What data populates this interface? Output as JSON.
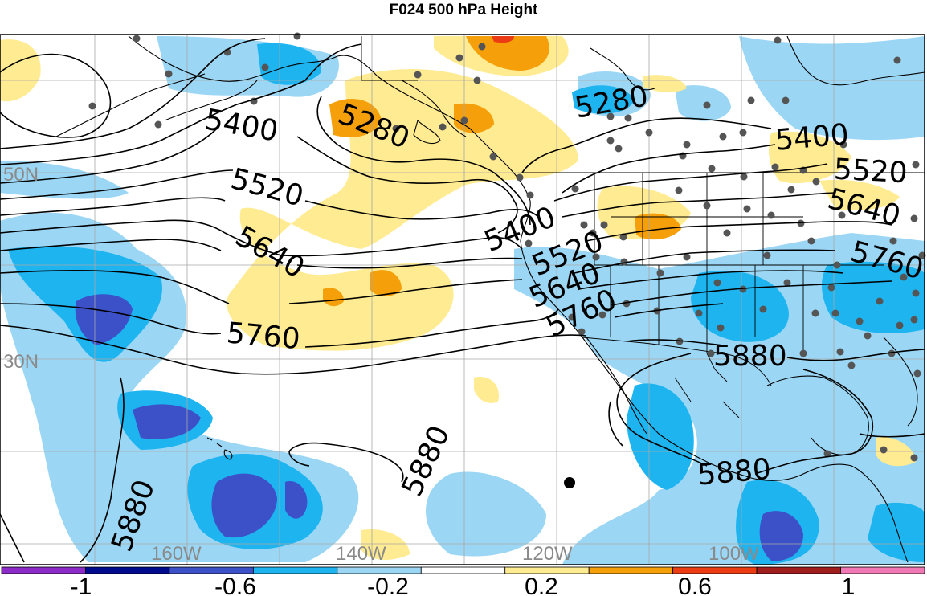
{
  "title": "F024 500 hPa Height",
  "colors": {
    "background": "#ffffff",
    "contour": "#000000",
    "gridline": "#a8a8a8",
    "station": "#555555"
  },
  "map": {
    "projection": "cylindrical",
    "contour_field": "500 hPa geopotential height (m)",
    "contour_levels": [
      5280,
      5400,
      5520,
      5640,
      5760,
      5880
    ],
    "contour_labels": [
      "5400",
      "5280",
      "5520",
      "5640",
      "5760",
      "5280",
      "5400",
      "5520",
      "5400",
      "5520",
      "5640",
      "5760",
      "5640",
      "5760",
      "5880",
      "5880",
      "5880",
      "5880"
    ],
    "lat_labels": [
      "50N",
      "30N"
    ],
    "lon_labels": [
      "160W",
      "140W",
      "120W",
      "100W"
    ],
    "shading_range": [
      -1.2,
      1.2
    ],
    "station_count_approx": 110
  },
  "colorbar": {
    "colors": [
      "#8c2bc8",
      "#000a8c",
      "#3c50c8",
      "#1eb4f0",
      "#9bd7f5",
      "#ffffff",
      "#ffeb91",
      "#f5a00a",
      "#eb3c14",
      "#a01e1e",
      "#f078b4"
    ],
    "tick_labels": [
      "-1",
      "-0.6",
      "-0.2",
      "0.2",
      "0.6",
      "1"
    ]
  }
}
